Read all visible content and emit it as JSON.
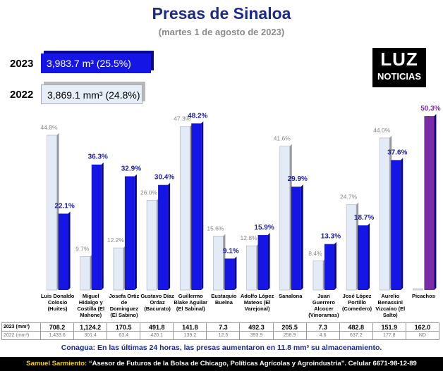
{
  "header": {
    "title": "Presas de Sinaloa",
    "subtitle": "(martes 1 de agosto de 2023)",
    "summary": [
      {
        "year": "2023",
        "text": "3,983.7 m³ (25.5%)"
      },
      {
        "year": "2022",
        "text": "3,869.1 mm³ (24.8%)"
      }
    ],
    "logo": [
      "LUZ",
      "NOTICIAS"
    ]
  },
  "chart_data": {
    "type": "bar",
    "categories": [
      "Luis Donaldo Colosio (Huites)",
      "Miguel Hidalgo y Costilla (El Mahone)",
      "Josefa Ortiz de Dominguez (El Sabino)",
      "Gustavo Díaz Ordaz (Bacurato)",
      "Guillermo Blake Aguilar (El Sabinal)",
      "Eustaquio Buelna",
      "Adolfo López Mateos (El Varejonal)",
      "Sanalona",
      "Juan Guerrero Alcocer (Vinoramas)",
      "José López Portillo (Comedero)",
      "Aurelio Benassini Vizcaíno (El Salto)",
      "Picachos"
    ],
    "series": [
      {
        "name": "2022",
        "color": "#e2ebf6",
        "values": [
          44.8,
          9.7,
          12.2,
          26.0,
          47.3,
          15.6,
          12.8,
          41.6,
          8.4,
          24.7,
          44.0,
          null
        ],
        "value_labels": [
          "44.8%",
          "9.7%",
          "12.2%",
          "26.0%",
          "47.3%",
          "15.6%",
          "12.8%",
          "41.6%",
          "8.4%",
          "24.7%",
          "44.0%",
          null
        ]
      },
      {
        "name": "2023",
        "color": "#1515e6",
        "colors": [
          "#1515e6",
          "#1515e6",
          "#1515e6",
          "#1515e6",
          "#1515e6",
          "#1515e6",
          "#1515e6",
          "#1515e6",
          "#1515e6",
          "#1515e6",
          "#1515e6",
          "#7a2ca8"
        ],
        "values": [
          22.1,
          36.3,
          32.9,
          30.4,
          48.2,
          9.1,
          15.9,
          29.9,
          13.3,
          18.7,
          37.6,
          50.3
        ],
        "value_labels": [
          "22.1%",
          "36.3%",
          "32.9%",
          "30.4%",
          "48.2%",
          "9.1%",
          "15.9%",
          "29.9%",
          "13.3%",
          "18.7%",
          "37.6%",
          "50.3%"
        ]
      }
    ]
  },
  "table": {
    "rows": [
      [
        "2023 (mm³)",
        "708.2",
        "1,124.2",
        "170.5",
        "491.8",
        "141.8",
        "7.3",
        "492.3",
        "205.5",
        "7.3",
        "482.8",
        "151.9",
        "162.0"
      ],
      [
        "2022 (mm³)",
        "1,433.6",
        "301.4",
        "63.4",
        "420.1",
        "139.2",
        "12.5",
        "393.9",
        "258.9",
        "4.6",
        "637.2",
        "177.8",
        "ND"
      ]
    ]
  },
  "footer": {
    "note": "Conagua: En las últimas 24 horas, las presas aumentaron en 11.8 mm³ su almacenamiento.",
    "author": "Samuel Sarmiento:",
    "quote": "“Asesor de Futuros de la Bolsa de Chicago, Políticas Agrícolas y Agroindustria”. Celular 6671-98-12-89"
  }
}
